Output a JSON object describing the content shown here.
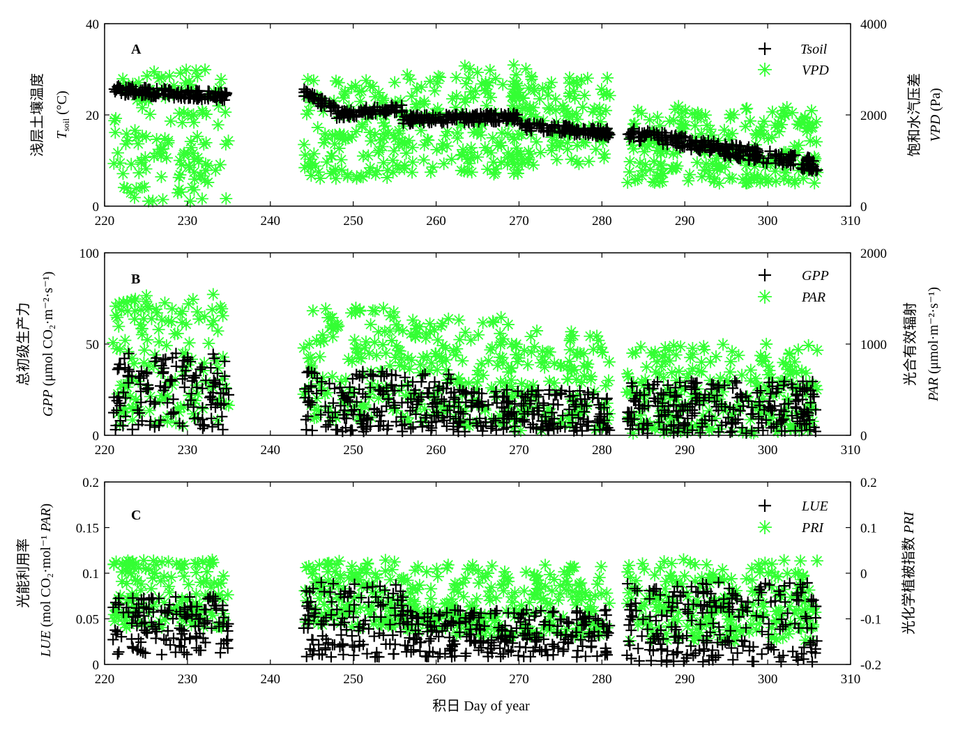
{
  "colors": {
    "black_series": "#000000",
    "green_series": "#33ff33",
    "axis": "#000000"
  },
  "xlabel": "积日 Day of year",
  "chart_data": [
    {
      "type": "scatter",
      "panel_letter": "A",
      "xlim": [
        220,
        310
      ],
      "xticks": [
        "220",
        "230",
        "240",
        "250",
        "260",
        "270",
        "280",
        "290",
        "300",
        "310"
      ],
      "ylim_left": [
        0,
        40
      ],
      "yticks_left": [
        "0",
        "20",
        "40"
      ],
      "ylim_right": [
        0,
        4000
      ],
      "yticks_right": [
        "0",
        "2000",
        "4000"
      ],
      "ylabel_left_1": "浅层土壤温度",
      "ylabel_left_2": "T",
      "ylabel_left_2_sub": "soil",
      "ylabel_left_2_unit": " (°C)",
      "ylabel_right_1": "饱和水汽压差",
      "ylabel_right_2_italic": "VPD",
      "ylabel_right_2_unit": " (Pa)",
      "grid": false,
      "legend_position": "top-right",
      "series": [
        {
          "name": "Tsoil",
          "marker": "plus",
          "axis": "left",
          "segments": [
            {
              "x0": 221.0,
              "x1": 235.0,
              "y0": 25.5,
              "y1": 24.0,
              "noise": 1.0
            },
            {
              "x0": 244.0,
              "x1": 248.0,
              "y0": 25.0,
              "y1": 21.0,
              "noise": 1.0
            },
            {
              "x0": 248.0,
              "x1": 256.0,
              "y0": 20.0,
              "y1": 21.5,
              "noise": 1.0
            },
            {
              "x0": 256.0,
              "x1": 270.0,
              "y0": 19.0,
              "y1": 19.5,
              "noise": 1.0
            },
            {
              "x0": 270.0,
              "x1": 281.0,
              "y0": 17.5,
              "y1": 16.0,
              "noise": 1.0
            },
            {
              "x0": 283.0,
              "x1": 306.0,
              "y0": 16.0,
              "y1": 9.0,
              "noise": 1.5
            }
          ]
        },
        {
          "name": "VPD",
          "marker": "asterisk",
          "axis": "right",
          "segments": [
            {
              "x0": 221.0,
              "x1": 235.0,
              "y0": 100,
              "y1": 3000,
              "noise": 0
            },
            {
              "x0": 244.0,
              "x1": 256.0,
              "y0": 600,
              "y1": 2800,
              "noise": 0
            },
            {
              "x0": 256.0,
              "x1": 271.0,
              "y0": 700,
              "y1": 3100,
              "noise": 0
            },
            {
              "x0": 269.0,
              "x1": 281.0,
              "y0": 900,
              "y1": 2900,
              "noise": 0
            },
            {
              "x0": 283.0,
              "x1": 306.0,
              "y0": 500,
              "y1": 2200,
              "noise": 0
            }
          ]
        }
      ]
    },
    {
      "type": "scatter",
      "panel_letter": "B",
      "xlim": [
        220,
        310
      ],
      "xticks": [
        "220",
        "230",
        "240",
        "250",
        "260",
        "270",
        "280",
        "290",
        "300",
        "310"
      ],
      "ylim_left": [
        0,
        100
      ],
      "yticks_left": [
        "0",
        "50",
        "100"
      ],
      "ylim_right": [
        0,
        2000
      ],
      "yticks_right": [
        "0",
        "1000",
        "2000"
      ],
      "ylabel_left_1": "总初级生产力",
      "ylabel_left_2_italic": "GPP",
      "ylabel_left_2_unit": " (μmol CO₂·m⁻²·s⁻¹)",
      "ylabel_right_1": "光合有效辐射",
      "ylabel_right_2_italic": "PAR",
      "ylabel_right_2_unit": " (μmol·m⁻²·s⁻¹)",
      "grid": false,
      "legend_position": "top-right",
      "series": [
        {
          "name": "GPP",
          "marker": "plus",
          "axis": "left",
          "segments": [
            {
              "x0": 221.0,
              "x1": 235.0,
              "y0": 3,
              "y1": 45,
              "noise": 0
            },
            {
              "x0": 244.0,
              "x1": 262.0,
              "y0": 2,
              "y1": 35,
              "noise": 0
            },
            {
              "x0": 262.0,
              "x1": 281.0,
              "y0": 2,
              "y1": 25,
              "noise": 0
            },
            {
              "x0": 283.0,
              "x1": 306.0,
              "y0": 1,
              "y1": 30,
              "noise": 0
            }
          ]
        },
        {
          "name": "PAR",
          "marker": "asterisk",
          "axis": "right",
          "segments": [
            {
              "x0": 221.0,
              "x1": 235.0,
              "y0": 100,
              "y1": 1550,
              "noise": 0
            },
            {
              "x0": 244.0,
              "x1": 256.0,
              "y0": 150,
              "y1": 1400,
              "noise": 0
            },
            {
              "x0": 256.0,
              "x1": 269.0,
              "y0": 100,
              "y1": 1300,
              "noise": 0
            },
            {
              "x0": 269.0,
              "x1": 281.0,
              "y0": 50,
              "y1": 1150,
              "noise": 0
            },
            {
              "x0": 283.0,
              "x1": 306.0,
              "y0": 20,
              "y1": 1000,
              "noise": 0
            }
          ]
        }
      ]
    },
    {
      "type": "scatter",
      "panel_letter": "C",
      "xlim": [
        220,
        310
      ],
      "xticks": [
        "220",
        "230",
        "240",
        "250",
        "260",
        "270",
        "280",
        "290",
        "300",
        "310"
      ],
      "ylim_left": [
        0,
        0.2
      ],
      "yticks_left": [
        "0",
        "0.05",
        "0.1",
        "0.15",
        "0.2"
      ],
      "ylim_right": [
        -0.2,
        0.2
      ],
      "yticks_right": [
        "-0.2",
        "-0.1",
        "0",
        "0.1",
        "0.2"
      ],
      "ylabel_left_1": "光能利用率",
      "ylabel_left_2_italic": "LUE",
      "ylabel_left_2_unit": " (mol CO₂·mol⁻¹ ",
      "ylabel_left_2_italic_b": "PAR",
      "ylabel_left_2_close": ")",
      "ylabel_right_1": "光化学植被指数 ",
      "ylabel_right_1_italic": "PRI",
      "grid": false,
      "legend_position": "top-right",
      "series": [
        {
          "name": "LUE",
          "marker": "plus",
          "axis": "left",
          "segments": [
            {
              "x0": 221.0,
              "x1": 235.0,
              "y0": 0.01,
              "y1": 0.075,
              "noise": 0
            },
            {
              "x0": 244.0,
              "x1": 256.0,
              "y0": 0.008,
              "y1": 0.09,
              "noise": 0
            },
            {
              "x0": 256.0,
              "x1": 281.0,
              "y0": 0.008,
              "y1": 0.06,
              "noise": 0
            },
            {
              "x0": 283.0,
              "x1": 306.0,
              "y0": 0.002,
              "y1": 0.09,
              "noise": 0
            }
          ]
        },
        {
          "name": "PRI",
          "marker": "asterisk",
          "axis": "right",
          "segments": [
            {
              "x0": 221.0,
              "x1": 235.0,
              "y0": -0.12,
              "y1": 0.03,
              "noise": 0
            },
            {
              "x0": 244.0,
              "x1": 256.0,
              "y0": -0.12,
              "y1": 0.03,
              "noise": 0
            },
            {
              "x0": 256.0,
              "x1": 281.0,
              "y0": -0.14,
              "y1": 0.02,
              "noise": 0
            },
            {
              "x0": 283.0,
              "x1": 306.0,
              "y0": -0.15,
              "y1": 0.03,
              "noise": 0
            }
          ]
        }
      ]
    }
  ]
}
